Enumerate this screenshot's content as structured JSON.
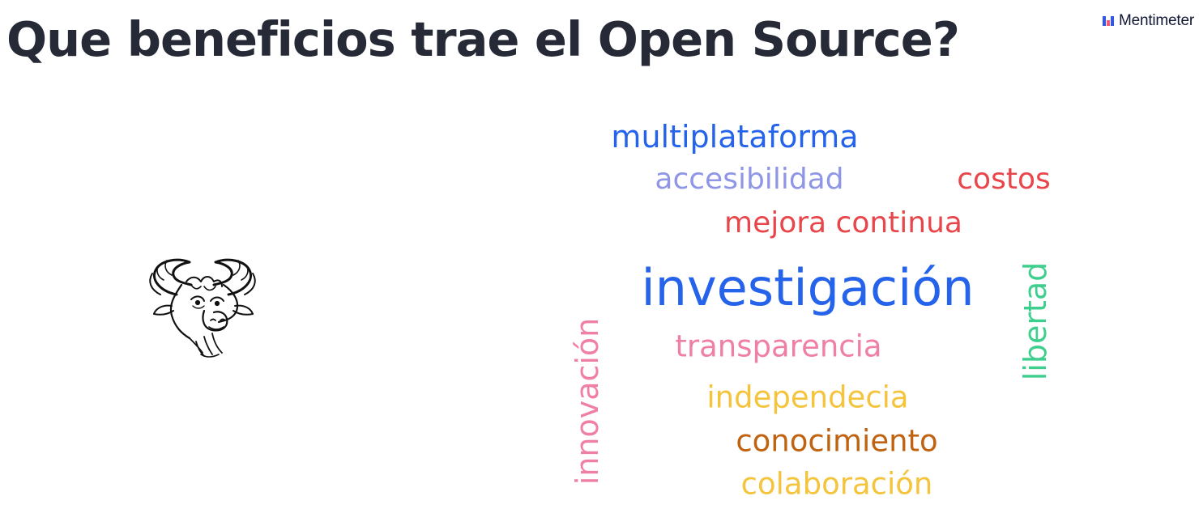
{
  "slide": {
    "title": "Que beneficios trae el Open Source?"
  },
  "brand": {
    "name": "Mentimeter",
    "icon": "mentimeter-logo-icon",
    "icon_colors": [
      "#3155f4",
      "#f25a6d"
    ]
  },
  "image": {
    "icon": "gnu-head-icon"
  },
  "word_cloud": {
    "words": [
      {
        "text": "multiplataforma",
        "color": "#2563eb"
      },
      {
        "text": "accesibilidad",
        "color": "#8f96e6"
      },
      {
        "text": "costos",
        "color": "#e8464a"
      },
      {
        "text": "mejora continua",
        "color": "#e8464a"
      },
      {
        "text": "investigación",
        "color": "#2563eb"
      },
      {
        "text": "libertad",
        "color": "#3ecf8e"
      },
      {
        "text": "transparencia",
        "color": "#f07fa6"
      },
      {
        "text": "innovación",
        "color": "#f07fa6"
      },
      {
        "text": "independecia",
        "color": "#f5c43d"
      },
      {
        "text": "conocimiento",
        "color": "#c0620f"
      },
      {
        "text": "colaboración",
        "color": "#f5c43d"
      }
    ]
  }
}
